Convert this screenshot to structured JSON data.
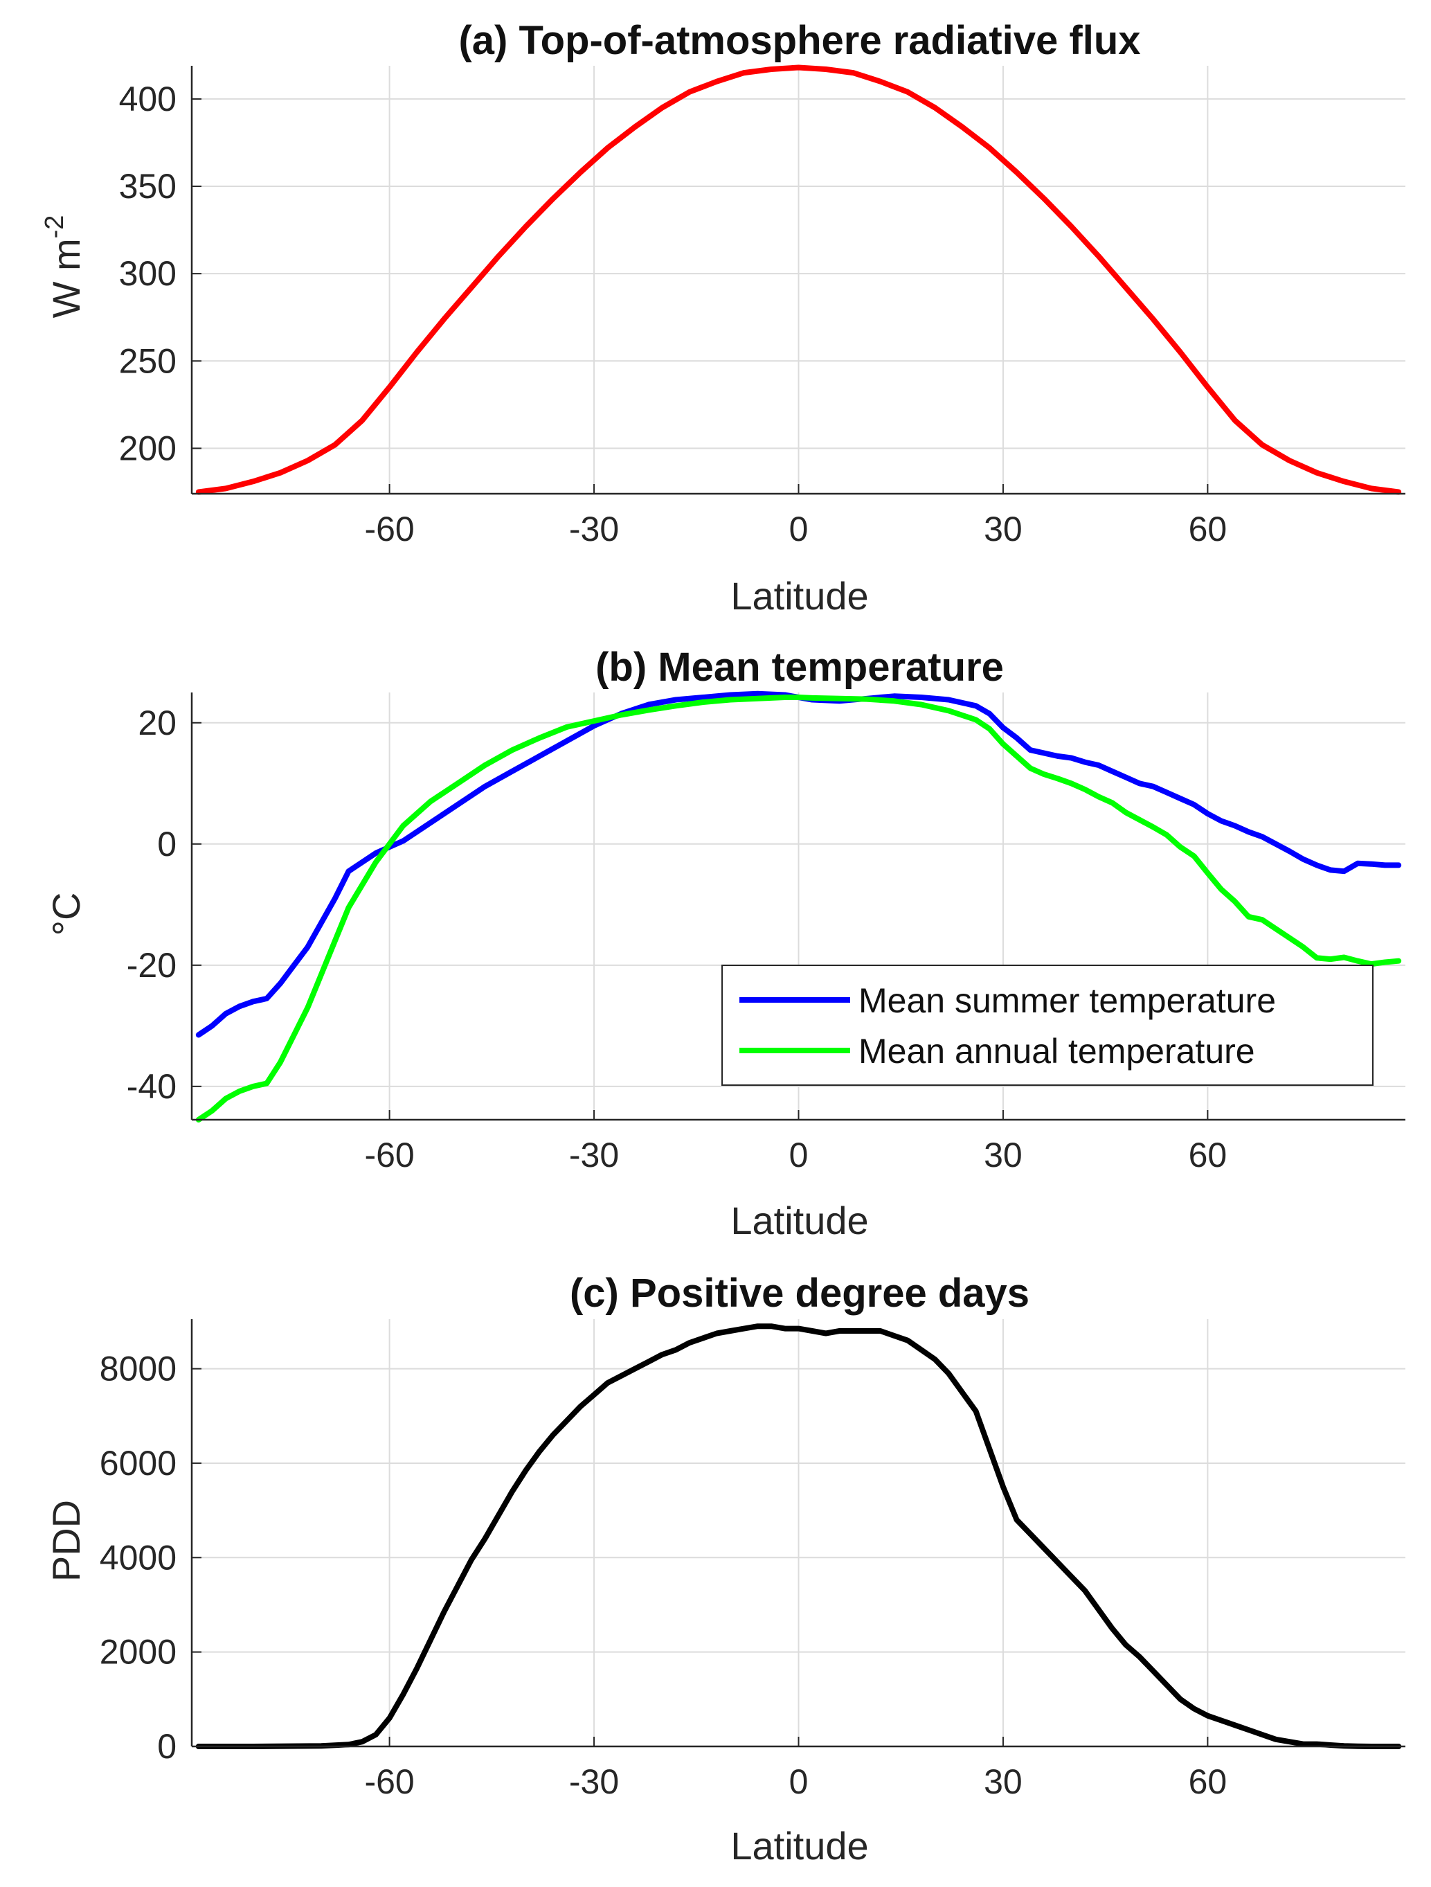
{
  "chart_data": [
    {
      "type": "line",
      "title": "(a) Top-of-atmosphere radiative flux",
      "xlabel": "Latitude",
      "ylabel": "W m",
      "ylabel_superscript": "-2",
      "xlim": [
        -89,
        89
      ],
      "ylim": [
        174,
        419
      ],
      "xticks": [
        "-60",
        "-30",
        "0",
        "30",
        "60"
      ],
      "yticks": [
        "200",
        "250",
        "300",
        "350",
        "400"
      ],
      "grid": true,
      "series": [
        {
          "color": "#ff0000",
          "x": [
            -88,
            -84,
            -80,
            -76,
            -72,
            -68,
            -64,
            -60,
            -56,
            -52,
            -48,
            -44,
            -40,
            -36,
            -32,
            -28,
            -24,
            -20,
            -16,
            -12,
            -8,
            -4,
            0,
            4,
            8,
            12,
            16,
            20,
            24,
            28,
            32,
            36,
            40,
            44,
            48,
            52,
            56,
            60,
            64,
            68,
            72,
            76,
            80,
            84,
            88
          ],
          "y": [
            175,
            177,
            181,
            186,
            193,
            202,
            216,
            235,
            255,
            274,
            292,
            310,
            327,
            343,
            358,
            372,
            384,
            395,
            404,
            410,
            415,
            417,
            418,
            417,
            415,
            410,
            404,
            395,
            384,
            372,
            358,
            343,
            327,
            310,
            292,
            274,
            255,
            235,
            216,
            202,
            193,
            186,
            181,
            177,
            175
          ]
        }
      ]
    },
    {
      "type": "line",
      "title": "(b) Mean temperature",
      "xlabel": "Latitude",
      "ylabel": "°C",
      "xlim": [
        -89,
        89
      ],
      "ylim": [
        -45.5,
        25
      ],
      "xticks": [
        "-60",
        "-30",
        "0",
        "30",
        "60"
      ],
      "yticks": [
        "-40",
        "-20",
        "0",
        "20"
      ],
      "grid": true,
      "legend_position": "lower-right",
      "series": [
        {
          "name": "Mean summer temperature",
          "color": "#0000ff",
          "x": [
            -88,
            -86,
            -84,
            -82,
            -80,
            -78,
            -76,
            -74,
            -72,
            -70,
            -68,
            -66,
            -62,
            -58,
            -54,
            -50,
            -46,
            -42,
            -38,
            -34,
            -30,
            -26,
            -22,
            -18,
            -14,
            -10,
            -6,
            -2,
            0,
            2,
            6,
            10,
            14,
            18,
            22,
            26,
            28,
            30,
            32,
            34,
            36,
            38,
            40,
            42,
            44,
            46,
            48,
            50,
            52,
            54,
            56,
            58,
            60,
            62,
            64,
            66,
            68,
            70,
            72,
            74,
            76,
            78,
            80,
            82,
            84,
            86,
            88
          ],
          "y": [
            -31.5,
            -30,
            -28,
            -26.8,
            -26,
            -25.5,
            -23,
            -20,
            -17,
            -13,
            -9,
            -4.5,
            -1.5,
            0.5,
            3.5,
            6.5,
            9.5,
            12,
            14.5,
            17,
            19.5,
            21.5,
            23,
            23.8,
            24.2,
            24.6,
            24.8,
            24.6,
            24.2,
            23.8,
            23.6,
            24,
            24.4,
            24.2,
            23.8,
            22.8,
            21.5,
            19.2,
            17.5,
            15.5,
            15,
            14.5,
            14.2,
            13.5,
            13,
            12,
            11,
            10,
            9.5,
            8.5,
            7.5,
            6.5,
            5,
            3.8,
            3,
            2,
            1.2,
            0,
            -1.2,
            -2.5,
            -3.5,
            -4.3,
            -4.5,
            -3.2,
            -3.3,
            -3.5,
            -3.5
          ]
        },
        {
          "name": "Mean annual temperature",
          "color": "#00ff00",
          "x": [
            -88,
            -86,
            -84,
            -82,
            -80,
            -78,
            -76,
            -74,
            -72,
            -70,
            -68,
            -66,
            -62,
            -58,
            -54,
            -50,
            -46,
            -42,
            -38,
            -34,
            -30,
            -26,
            -22,
            -18,
            -14,
            -10,
            -6,
            -2,
            0,
            2,
            6,
            10,
            14,
            18,
            22,
            26,
            28,
            30,
            32,
            34,
            36,
            38,
            40,
            42,
            44,
            46,
            48,
            50,
            52,
            54,
            56,
            58,
            60,
            62,
            64,
            66,
            68,
            70,
            72,
            74,
            76,
            78,
            80,
            82,
            84,
            86,
            88
          ],
          "y": [
            -45.5,
            -44,
            -42,
            -40.8,
            -40,
            -39.5,
            -36,
            -31.5,
            -27,
            -21.5,
            -16,
            -10.5,
            -3,
            3,
            7,
            10,
            13,
            15.5,
            17.5,
            19.3,
            20.3,
            21.3,
            22.1,
            22.8,
            23.4,
            23.8,
            24,
            24.2,
            24.2,
            24.1,
            24,
            23.9,
            23.6,
            23,
            22,
            20.5,
            19,
            16.5,
            14.5,
            12.5,
            11.5,
            10.8,
            10,
            9,
            7.8,
            6.8,
            5.2,
            4,
            2.8,
            1.5,
            -0.5,
            -2,
            -4.8,
            -7.5,
            -9.5,
            -12,
            -12.5,
            -14,
            -15.5,
            -17,
            -18.8,
            -19,
            -18.7,
            -19.3,
            -19.8,
            -19.5,
            -19.3
          ]
        }
      ]
    },
    {
      "type": "line",
      "title": "(c) Positive degree days",
      "xlabel": "Latitude",
      "ylabel": "PDD",
      "xlim": [
        -89,
        89
      ],
      "ylim": [
        0,
        9050
      ],
      "xticks": [
        "-60",
        "-30",
        "0",
        "30",
        "60"
      ],
      "yticks": [
        "0",
        "2000",
        "4000",
        "6000",
        "8000"
      ],
      "grid": true,
      "series": [
        {
          "color": "#000000",
          "x": [
            -88,
            -80,
            -70,
            -66,
            -64,
            -62,
            -60,
            -58,
            -56,
            -54,
            -52,
            -50,
            -48,
            -46,
            -44,
            -42,
            -40,
            -38,
            -36,
            -34,
            -32,
            -30,
            -28,
            -26,
            -24,
            -22,
            -20,
            -18,
            -16,
            -14,
            -12,
            -10,
            -8,
            -6,
            -4,
            -2,
            0,
            2,
            4,
            6,
            8,
            10,
            12,
            14,
            16,
            18,
            20,
            22,
            24,
            26,
            28,
            30,
            32,
            34,
            36,
            38,
            40,
            42,
            44,
            46,
            48,
            50,
            52,
            54,
            56,
            58,
            60,
            62,
            64,
            66,
            68,
            70,
            72,
            74,
            76,
            78,
            80,
            82,
            84,
            86,
            88
          ],
          "y": [
            0,
            0,
            10,
            40,
            100,
            250,
            600,
            1100,
            1650,
            2250,
            2850,
            3400,
            3950,
            4400,
            4900,
            5400,
            5850,
            6250,
            6600,
            6900,
            7200,
            7450,
            7700,
            7850,
            8000,
            8150,
            8300,
            8400,
            8550,
            8650,
            8750,
            8800,
            8850,
            8900,
            8900,
            8850,
            8850,
            8800,
            8750,
            8800,
            8800,
            8800,
            8800,
            8700,
            8600,
            8400,
            8200,
            7900,
            7500,
            7100,
            6300,
            5500,
            4800,
            4500,
            4200,
            3900,
            3600,
            3300,
            2900,
            2500,
            2150,
            1900,
            1600,
            1300,
            1000,
            800,
            650,
            550,
            450,
            350,
            250,
            150,
            100,
            50,
            50,
            30,
            10,
            5,
            0,
            0,
            0
          ]
        }
      ]
    }
  ]
}
